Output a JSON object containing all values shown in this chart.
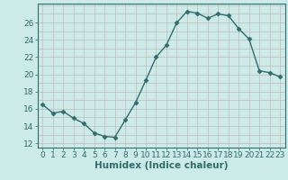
{
  "x": [
    0,
    1,
    2,
    3,
    4,
    5,
    6,
    7,
    8,
    9,
    10,
    11,
    12,
    13,
    14,
    15,
    16,
    17,
    18,
    19,
    20,
    21,
    22,
    23
  ],
  "y": [
    16.5,
    15.5,
    15.7,
    14.9,
    14.3,
    13.2,
    12.8,
    12.7,
    14.7,
    16.7,
    19.3,
    22.0,
    23.4,
    26.0,
    27.3,
    27.1,
    26.5,
    27.0,
    26.8,
    25.3,
    24.1,
    20.4,
    20.2,
    19.7
  ],
  "line_color": "#2d6e6e",
  "marker": "D",
  "marker_size": 2.5,
  "bg_color": "#cceae8",
  "grid_color": "#c8b8b8",
  "xlabel": "Humidex (Indice chaleur)",
  "ylabel_ticks": [
    12,
    14,
    16,
    18,
    20,
    22,
    24,
    26
  ],
  "ylim": [
    11.5,
    28.2
  ],
  "xlim": [
    -0.5,
    23.5
  ],
  "xticks": [
    0,
    1,
    2,
    3,
    4,
    5,
    6,
    7,
    8,
    9,
    10,
    11,
    12,
    13,
    14,
    15,
    16,
    17,
    18,
    19,
    20,
    21,
    22,
    23
  ],
  "xlabel_fontsize": 7.5,
  "tick_fontsize": 6.5
}
